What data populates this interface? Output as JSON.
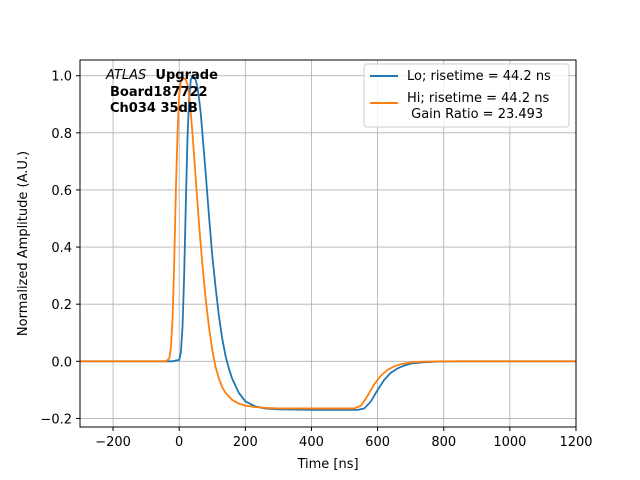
{
  "chart_data": {
    "type": "line",
    "xlabel": "Time [ns]",
    "ylabel": "Normalized Amplitude (A.U.)",
    "xlim": [
      -300,
      1200
    ],
    "ylim": [
      -0.23,
      1.055
    ],
    "xticks": [
      -200,
      0,
      200,
      400,
      600,
      800,
      1000,
      1200
    ],
    "xtick_labels": [
      "−200",
      "0",
      "200",
      "400",
      "600",
      "800",
      "1000",
      "1200"
    ],
    "yticks": [
      -0.2,
      0.0,
      0.2,
      0.4,
      0.6,
      0.8,
      1.0
    ],
    "ytick_labels": [
      "−0.2",
      "0.0",
      "0.2",
      "0.4",
      "0.6",
      "0.8",
      "1.0"
    ],
    "grid": true,
    "legend_position": "top-right",
    "annotation": {
      "atlas": "ATLAS",
      "upgrade": "Upgrade",
      "board": "Board187722",
      "channel": "Ch034 35dB"
    },
    "series": [
      {
        "name": "Lo; risetime = 44.2 ns",
        "legend_line2": "",
        "color": "#1f77b4",
        "x": [
          -300,
          -20,
          0,
          5,
          10,
          15,
          20,
          25,
          30,
          35,
          40,
          45,
          50,
          55,
          60,
          65,
          70,
          80,
          90,
          100,
          110,
          120,
          130,
          140,
          150,
          160,
          180,
          200,
          230,
          260,
          300,
          400,
          500,
          540,
          560,
          580,
          600,
          620,
          640,
          660,
          680,
          700,
          740,
          780,
          850,
          1000,
          1200
        ],
        "y": [
          0.0,
          0.0,
          0.005,
          0.03,
          0.12,
          0.3,
          0.55,
          0.78,
          0.92,
          0.985,
          1.0,
          0.995,
          0.985,
          0.96,
          0.92,
          0.87,
          0.8,
          0.66,
          0.51,
          0.37,
          0.26,
          0.16,
          0.08,
          0.02,
          -0.025,
          -0.06,
          -0.11,
          -0.14,
          -0.158,
          -0.165,
          -0.168,
          -0.17,
          -0.17,
          -0.17,
          -0.165,
          -0.14,
          -0.1,
          -0.065,
          -0.04,
          -0.025,
          -0.015,
          -0.008,
          -0.003,
          -0.001,
          0.0,
          0.0,
          0.0
        ]
      },
      {
        "name": "Hi; risetime = 44.2 ns",
        "legend_line2": " Gain Ratio = 23.493",
        "color": "#ff7f0e",
        "x": [
          -300,
          -40,
          -30,
          -25,
          -20,
          -15,
          -10,
          -5,
          0,
          5,
          10,
          15,
          20,
          25,
          30,
          35,
          40,
          50,
          60,
          70,
          80,
          90,
          100,
          110,
          120,
          130,
          140,
          160,
          180,
          200,
          230,
          260,
          300,
          400,
          500,
          530,
          550,
          570,
          590,
          610,
          630,
          650,
          670,
          700,
          740,
          800,
          1000,
          1200
        ],
        "y": [
          0.0,
          0.0,
          0.01,
          0.05,
          0.15,
          0.35,
          0.6,
          0.8,
          0.93,
          0.98,
          0.995,
          0.99,
          0.985,
          0.97,
          0.93,
          0.87,
          0.8,
          0.64,
          0.48,
          0.34,
          0.22,
          0.12,
          0.04,
          -0.02,
          -0.06,
          -0.09,
          -0.11,
          -0.135,
          -0.148,
          -0.155,
          -0.16,
          -0.163,
          -0.165,
          -0.165,
          -0.165,
          -0.165,
          -0.155,
          -0.12,
          -0.08,
          -0.05,
          -0.03,
          -0.018,
          -0.01,
          -0.004,
          -0.001,
          0.0,
          0.0,
          0.0
        ]
      }
    ]
  }
}
